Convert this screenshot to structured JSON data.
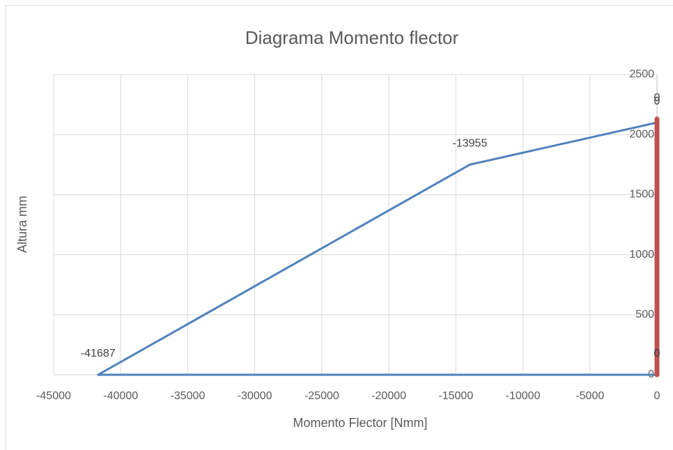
{
  "chart_data": {
    "type": "scatter",
    "title": "Diagrama Momento flector",
    "x_label": "Momento Flector [Nmm]",
    "y_label": "Altura mm",
    "series": [
      {
        "color": "#4f81bd",
        "x": [
          0,
          -41687,
          -13955,
          0
        ],
        "values": [
          0,
          0,
          1750,
          2100
        ]
      },
      {
        "color": "#c0504d",
        "x": [
          0,
          0
        ],
        "values": [
          0,
          2130
        ]
      }
    ],
    "xlim": [
      -45000,
      0
    ],
    "xticks": [
      -45000,
      -40000,
      -35000,
      -30000,
      -25000,
      -20000,
      -15000,
      -10000,
      -5000,
      0
    ],
    "ylim": [
      0,
      2500
    ],
    "yticks": [
      0,
      500,
      1000,
      1500,
      2000,
      2500
    ],
    "grid": true
  }
}
